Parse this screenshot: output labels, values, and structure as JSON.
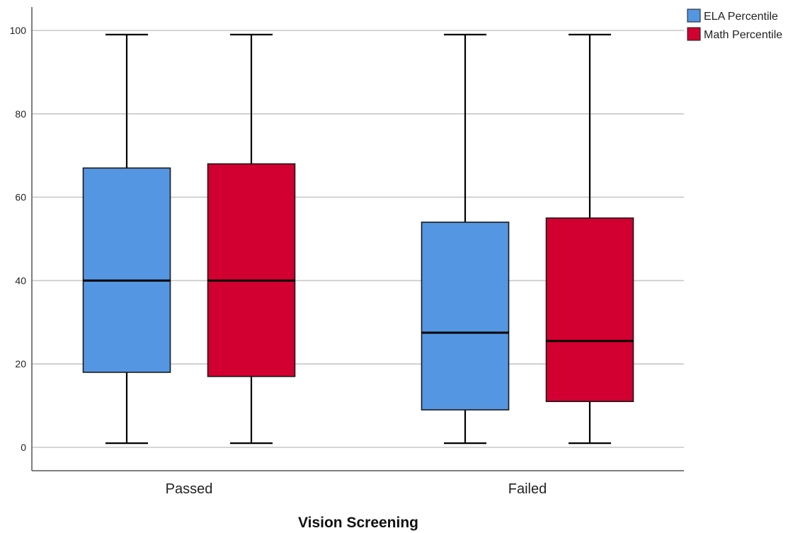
{
  "chart_data": {
    "type": "boxplot",
    "xlabel": "Vision Screening",
    "ylabel": "",
    "ylim": [
      -5,
      106
    ],
    "yticks": [
      0,
      20,
      40,
      60,
      80,
      100
    ],
    "grid": true,
    "legend_position": "top-right",
    "categories": [
      "Passed",
      "Failed"
    ],
    "series": [
      {
        "name": "ELA Percentile",
        "color": "#5596e2",
        "boxes": [
          {
            "min": 1,
            "q1": 18,
            "median": 40,
            "q3": 67,
            "max": 99
          },
          {
            "min": 1,
            "q1": 9,
            "median": 27.5,
            "q3": 54,
            "max": 99
          }
        ]
      },
      {
        "name": "Math Percentile",
        "color": "#d20030",
        "boxes": [
          {
            "min": 1,
            "q1": 17,
            "median": 40,
            "q3": 68,
            "max": 99
          },
          {
            "min": 1,
            "q1": 11,
            "median": 25.5,
            "q3": 55,
            "max": 99
          }
        ]
      }
    ]
  }
}
